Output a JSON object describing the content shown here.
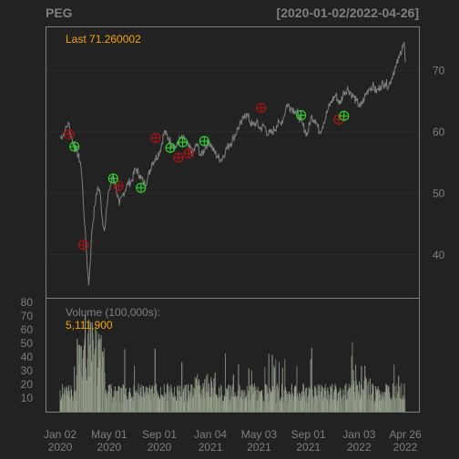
{
  "header": {
    "symbol": "PEG",
    "date_range": "[2020-01-02/2022-04-26]"
  },
  "price_panel": {
    "last_label": "Last 71.260002"
  },
  "volume_panel": {
    "title": "Volume (100,000s):",
    "last_value": "5,111,900"
  },
  "colors": {
    "background": "#222222",
    "frame": "#7f7f7f",
    "price_line": "#7f7f7f",
    "buy_marker": "#2bd12b",
    "sell_marker": "#a31515",
    "highlight": "#f5a30a",
    "grid": "#2c2c2c"
  },
  "chart_data": {
    "type": "line",
    "x_start": "2020-01-02",
    "x_end": "2022-04-26",
    "x_ticks": [
      {
        "day": 0,
        "label": "Jan 02",
        "year": "2020"
      },
      {
        "day": 120,
        "label": "May 01",
        "year": "2020"
      },
      {
        "day": 243,
        "label": "Sep 01",
        "year": "2020"
      },
      {
        "day": 368,
        "label": "Jan 04",
        "year": "2021"
      },
      {
        "day": 487,
        "label": "May 03",
        "year": "2021"
      },
      {
        "day": 608,
        "label": "Sep 01",
        "year": "2021"
      },
      {
        "day": 732,
        "label": "Jan 03",
        "year": "2022"
      },
      {
        "day": 845,
        "label": "Apr 26",
        "year": "2022"
      }
    ],
    "price": {
      "ylim": [
        33,
        77
      ],
      "y_ticks": [
        40,
        50,
        60,
        70
      ],
      "points": [
        [
          0,
          59.0
        ],
        [
          12,
          60.0
        ],
        [
          20,
          61.5
        ],
        [
          30,
          58.5
        ],
        [
          40,
          57.0
        ],
        [
          50,
          55.0
        ],
        [
          55,
          51.0
        ],
        [
          60,
          45.0
        ],
        [
          65,
          40.0
        ],
        [
          70,
          35.0
        ],
        [
          73,
          38.0
        ],
        [
          78,
          44.0
        ],
        [
          85,
          48.0
        ],
        [
          92,
          51.0
        ],
        [
          98,
          50.0
        ],
        [
          103,
          46.0
        ],
        [
          108,
          44.0
        ],
        [
          115,
          48.0
        ],
        [
          120,
          50.5
        ],
        [
          130,
          53.0
        ],
        [
          137,
          51.0
        ],
        [
          145,
          48.0
        ],
        [
          155,
          50.0
        ],
        [
          165,
          51.5
        ],
        [
          175,
          52.0
        ],
        [
          185,
          54.0
        ],
        [
          195,
          53.0
        ],
        [
          205,
          51.5
        ],
        [
          215,
          52.5
        ],
        [
          225,
          55.0
        ],
        [
          232,
          55.5
        ],
        [
          245,
          57.0
        ],
        [
          255,
          60.0
        ],
        [
          265,
          59.0
        ],
        [
          275,
          58.0
        ],
        [
          285,
          57.5
        ],
        [
          295,
          59.0
        ],
        [
          305,
          58.5
        ],
        [
          315,
          57.5
        ],
        [
          325,
          56.5
        ],
        [
          335,
          58.0
        ],
        [
          345,
          56.0
        ],
        [
          355,
          57.5
        ],
        [
          365,
          58.5
        ],
        [
          375,
          57.0
        ],
        [
          385,
          56.0
        ],
        [
          395,
          55.5
        ],
        [
          405,
          57.0
        ],
        [
          415,
          58.0
        ],
        [
          425,
          59.0
        ],
        [
          435,
          60.5
        ],
        [
          445,
          61.5
        ],
        [
          452,
          63.0
        ],
        [
          460,
          62.5
        ],
        [
          470,
          61.0
        ],
        [
          480,
          61.5
        ],
        [
          490,
          60.5
        ],
        [
          500,
          61.0
        ],
        [
          510,
          59.5
        ],
        [
          520,
          60.0
        ],
        [
          530,
          61.0
        ],
        [
          540,
          61.5
        ],
        [
          548,
          62.5
        ],
        [
          555,
          64.5
        ],
        [
          565,
          64.0
        ],
        [
          575,
          63.5
        ],
        [
          585,
          62.5
        ],
        [
          595,
          61.0
        ],
        [
          605,
          59.5
        ],
        [
          615,
          62.5
        ],
        [
          625,
          62.0
        ],
        [
          635,
          60.0
        ],
        [
          645,
          61.5
        ],
        [
          655,
          63.5
        ],
        [
          665,
          65.0
        ],
        [
          675,
          66.0
        ],
        [
          685,
          64.5
        ],
        [
          695,
          66.5
        ],
        [
          705,
          67.0
        ],
        [
          715,
          66.0
        ],
        [
          725,
          65.0
        ],
        [
          735,
          64.0
        ],
        [
          745,
          65.5
        ],
        [
          755,
          67.0
        ],
        [
          765,
          67.5
        ],
        [
          775,
          66.5
        ],
        [
          785,
          67.5
        ],
        [
          795,
          68.0
        ],
        [
          805,
          67.5
        ],
        [
          815,
          69.5
        ],
        [
          822,
          70.5
        ],
        [
          830,
          72.0
        ],
        [
          838,
          74.0
        ],
        [
          842,
          74.5
        ],
        [
          845,
          71.3
        ]
      ],
      "buy_signals": [
        [
          35,
          57.6
        ],
        [
          130,
          52.4
        ],
        [
          198,
          50.9
        ],
        [
          270,
          57.4
        ],
        [
          300,
          58.3
        ],
        [
          353,
          58.5
        ],
        [
          590,
          62.7
        ],
        [
          695,
          62.6
        ]
      ],
      "sell_signals": [
        [
          22,
          59.6
        ],
        [
          57,
          41.6
        ],
        [
          143,
          51.2
        ],
        [
          234,
          59.0
        ],
        [
          290,
          55.8
        ],
        [
          315,
          56.5
        ],
        [
          492,
          63.9
        ],
        [
          682,
          62.0
        ]
      ]
    },
    "volume": {
      "unit": "100,000s",
      "ylim": [
        0,
        80
      ],
      "y_ticks": [
        10,
        20,
        30,
        40,
        50,
        60,
        70,
        80
      ]
    }
  }
}
